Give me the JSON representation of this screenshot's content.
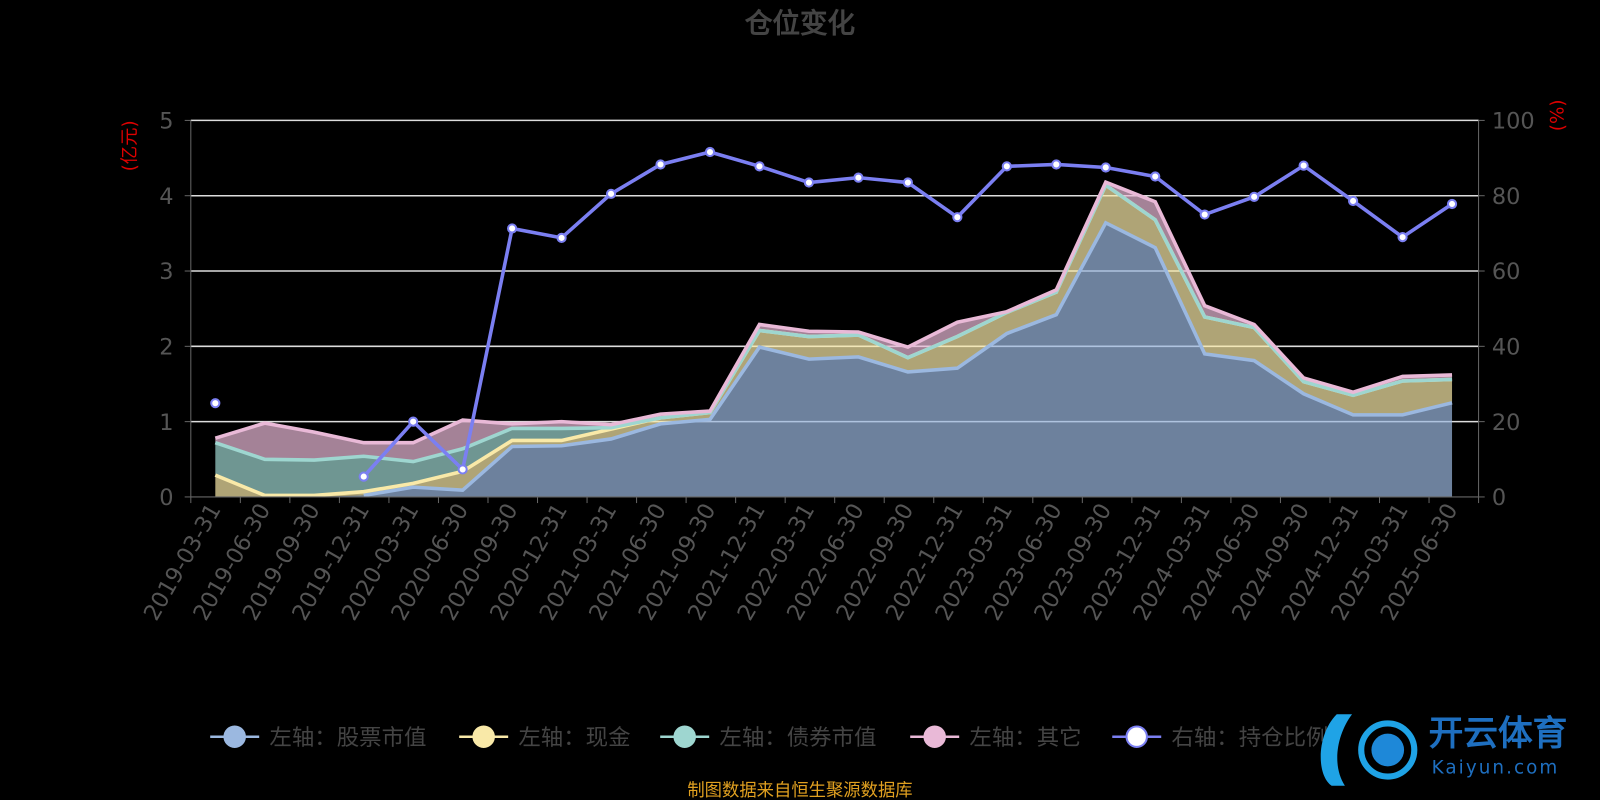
{
  "chart_data": {
    "type": "area",
    "stacked": true,
    "title": "仓位变化",
    "ylabel_left": "(亿元)",
    "ylabel_right": "(%)",
    "ylim_left": [
      0,
      5
    ],
    "ylim_right": [
      0,
      100
    ],
    "yticks_left": [
      "0",
      "1",
      "2",
      "3",
      "4",
      "5"
    ],
    "yticks_right": [
      "0",
      "20",
      "40",
      "60",
      "80",
      "100"
    ],
    "grid": true,
    "legend_position": "bottom",
    "categories": [
      "2019-03-31",
      "2019-06-30",
      "2019-09-30",
      "2019-12-31",
      "2020-03-31",
      "2020-06-30",
      "2020-09-30",
      "2020-12-31",
      "2021-03-31",
      "2021-06-30",
      "2021-09-30",
      "2021-12-31",
      "2022-03-31",
      "2022-06-30",
      "2022-09-30",
      "2022-12-31",
      "2023-03-31",
      "2023-06-30",
      "2023-09-30",
      "2023-12-31",
      "2024-03-31",
      "2024-06-30",
      "2024-09-30",
      "2024-12-31",
      "2025-03-31",
      "2025-06-30"
    ],
    "series": [
      {
        "name": "左轴：股票市值",
        "axis": "left",
        "color": "#9bb8e0",
        "values": [
          null,
          null,
          null,
          0.02,
          0.13,
          0.09,
          0.67,
          0.68,
          0.77,
          0.97,
          1.03,
          1.99,
          1.83,
          1.86,
          1.66,
          1.71,
          2.17,
          2.42,
          3.64,
          3.31,
          1.9,
          1.81,
          1.37,
          1.09,
          1.09,
          1.25
        ]
      },
      {
        "name": "左轴：现金",
        "axis": "left",
        "color": "#f9e9a8",
        "values": [
          0.29,
          0.02,
          0.02,
          0.05,
          0.05,
          0.25,
          0.08,
          0.07,
          0.13,
          0.08,
          0.09,
          0.22,
          0.3,
          0.29,
          0.19,
          0.42,
          0.28,
          0.3,
          0.5,
          0.37,
          0.49,
          0.44,
          0.16,
          0.26,
          0.45,
          0.31
        ]
      },
      {
        "name": "左轴：债券市值",
        "axis": "left",
        "color": "#9ed6d0",
        "values": [
          0.43,
          0.48,
          0.47,
          0.47,
          0.29,
          0.3,
          0.16,
          0.16,
          0.02,
          0,
          0,
          0,
          0,
          0,
          0,
          0,
          0,
          0,
          0,
          0,
          0,
          0,
          0,
          0,
          0,
          0
        ]
      },
      {
        "name": "左轴：其它",
        "axis": "left",
        "color": "#e9b9d7",
        "values": [
          0.06,
          0.48,
          0.37,
          0.18,
          0.25,
          0.38,
          0.06,
          0.09,
          0.04,
          0.05,
          0.02,
          0.08,
          0.07,
          0.04,
          0.14,
          0.19,
          0.01,
          0.03,
          0.04,
          0.24,
          0.15,
          0.04,
          0.05,
          0.04,
          0.06,
          0.06
        ]
      },
      {
        "name": "右轴：持仓比例",
        "axis": "right",
        "type": "line",
        "color": "#7b7ff2",
        "values": [
          24.9,
          null,
          null,
          5.4,
          20.0,
          7.3,
          71.3,
          68.8,
          80.5,
          88.3,
          91.6,
          87.8,
          83.5,
          84.8,
          83.5,
          74.3,
          87.8,
          88.3,
          87.5,
          85.1,
          75.0,
          79.7,
          88.0,
          78.6,
          69.0,
          77.8
        ]
      }
    ]
  },
  "footer": "制图数据来自恒生聚源数据库",
  "watermark": {
    "cn": "开云体育",
    "en": "Kaiyun.com"
  }
}
